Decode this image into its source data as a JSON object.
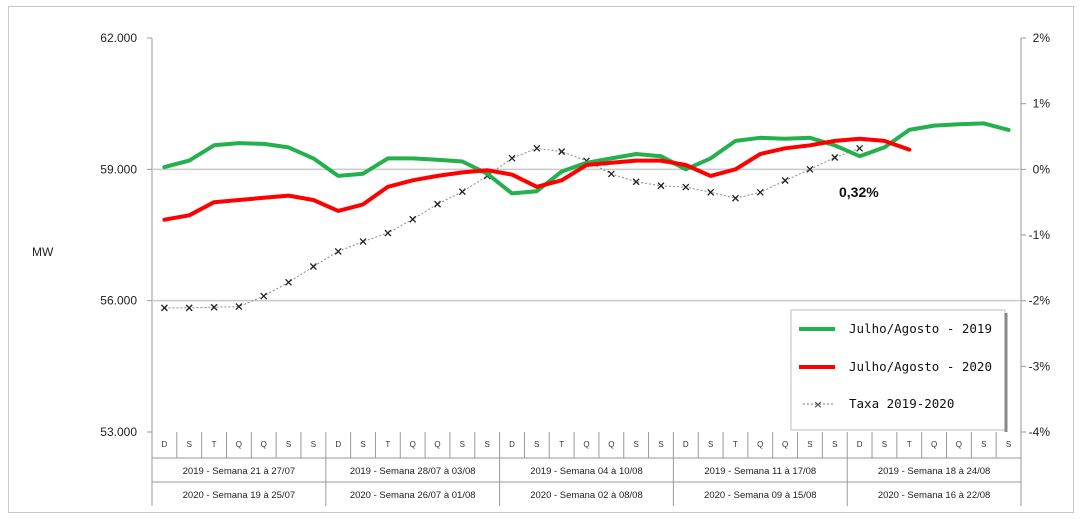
{
  "chart_data": {
    "type": "line",
    "ylabel": "MW",
    "ylim": [
      53000,
      62000
    ],
    "yticks": [
      "62.000",
      "59.000",
      "56.000",
      "53.000"
    ],
    "ytick_values": [
      62000,
      59000,
      56000,
      53000
    ],
    "y2lim": [
      -0.04,
      0.02
    ],
    "y2ticks": [
      "2%",
      "1%",
      "0%",
      "-1%",
      "-2%",
      "-3%",
      "-4%"
    ],
    "y2tick_values": [
      0.02,
      0.01,
      0,
      -0.01,
      -0.02,
      -0.03,
      -0.04
    ],
    "grid": "horizontal at 59.000 and 56.000",
    "day_labels": [
      "D",
      "S",
      "T",
      "Q",
      "Q",
      "S",
      "S",
      "D",
      "S",
      "T",
      "Q",
      "Q",
      "S",
      "S",
      "D",
      "S",
      "T",
      "Q",
      "Q",
      "S",
      "S",
      "D",
      "S",
      "T",
      "Q",
      "Q",
      "S",
      "S",
      "D",
      "S",
      "T",
      "Q",
      "Q",
      "S",
      "S"
    ],
    "weeks_2019": [
      "2019 - Semana 21 à 27/07",
      "2019 - Semana 28/07 à 03/08",
      "2019 - Semana 04 à 10/08",
      "2019 - Semana 11 à 17/08",
      "2019 - Semana 18 à 24/08"
    ],
    "weeks_2020": [
      "2020 - Semana 19 à 25/07",
      "2020 - Semana 26/07 à 01/08",
      "2020 - Semana 02 à 08/08",
      "2020 - Semana 09 à 15/08",
      "2020 - Semana 16 à 22/08"
    ],
    "series": [
      {
        "name": "Julho/Agosto - 2019",
        "axis": "left",
        "color": "#22b14c",
        "values": [
          59050,
          59200,
          59550,
          59600,
          59580,
          59500,
          59250,
          58850,
          58900,
          59250,
          59250,
          59220,
          59180,
          58900,
          58450,
          58500,
          58950,
          59150,
          59250,
          59350,
          59300,
          59000,
          59250,
          59650,
          59720,
          59700,
          59720,
          59550,
          59300,
          59500,
          59900,
          60000,
          60030,
          60050,
          59900
        ]
      },
      {
        "name": "Julho/Agosto - 2020",
        "axis": "left",
        "color": "#ff0000",
        "values": [
          57850,
          57950,
          58250,
          58300,
          58350,
          58400,
          58300,
          58050,
          58200,
          58600,
          58750,
          58850,
          58930,
          58980,
          58880,
          58600,
          58750,
          59100,
          59150,
          59200,
          59200,
          59100,
          58850,
          59000,
          59350,
          59480,
          59550,
          59650,
          59700,
          59650,
          59450
        ]
      },
      {
        "name": "Taxa 2019-2020",
        "axis": "right",
        "color": "#555555",
        "values": [
          -0.0211,
          -0.0211,
          -0.021,
          -0.0209,
          -0.0193,
          -0.0172,
          -0.0148,
          -0.0125,
          -0.011,
          -0.0097,
          -0.0076,
          -0.0053,
          -0.0034,
          -0.001,
          0.0017,
          0.0032,
          0.0027,
          0.0013,
          -0.0007,
          -0.0019,
          -0.0025,
          -0.0027,
          -0.0035,
          -0.0044,
          -0.0035,
          -0.0017,
          0.0,
          0.0018,
          0.0032
        ]
      }
    ],
    "annotations": [
      "0,32%"
    ]
  }
}
